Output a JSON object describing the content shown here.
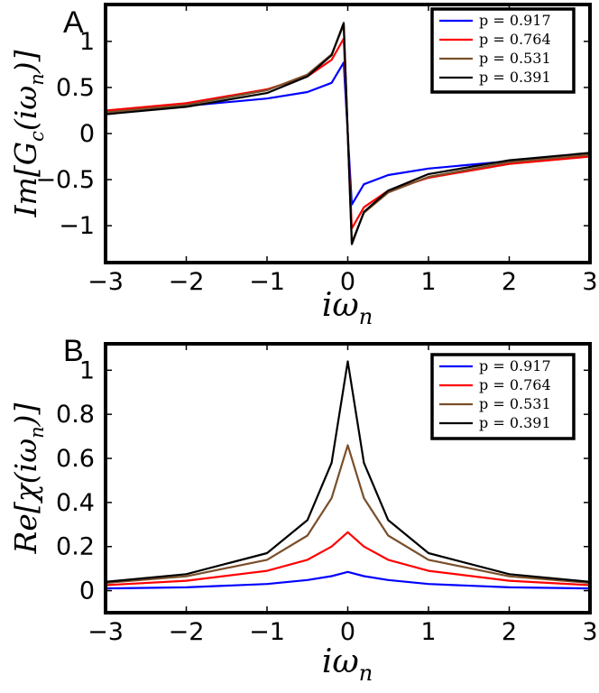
{
  "chart_data": [
    {
      "panel_label": "A",
      "type": "line",
      "xlabel": "iω",
      "xlabel_sub": "n",
      "ylabel": "Im[G_c(iω_n)]",
      "ylabel_parts": {
        "prefix": "Im[G",
        "sub1": "c",
        "mid": "(iω",
        "sub2": "n",
        "suffix": ")]"
      },
      "xlim": [
        -3,
        3
      ],
      "ylim": [
        -1.4,
        1.4
      ],
      "xticks": [
        -3,
        -2,
        -1,
        0,
        1,
        2,
        3
      ],
      "xtick_labels": [
        "−3",
        "−2",
        "−1",
        "0",
        "1",
        "2",
        "3"
      ],
      "yticks": [
        -1,
        -0.5,
        0,
        0.5,
        1
      ],
      "ytick_labels": [
        "−1",
        "−0.5",
        "0",
        "0.5",
        "1"
      ],
      "legend_position": "top-right",
      "series": [
        {
          "name": "p = 0.917",
          "color": "#0000ff",
          "x": [
            -3,
            -2,
            -1,
            -0.5,
            -0.2,
            -0.05,
            0.05,
            0.2,
            0.5,
            1,
            2,
            3
          ],
          "values": [
            0.24,
            0.3,
            0.38,
            0.45,
            0.55,
            0.77,
            -0.77,
            -0.55,
            -0.45,
            -0.38,
            -0.3,
            -0.24
          ]
        },
        {
          "name": "p = 0.764",
          "color": "#ff0000",
          "x": [
            -3,
            -2,
            -1,
            -0.5,
            -0.2,
            -0.05,
            0.05,
            0.2,
            0.5,
            1,
            2,
            3
          ],
          "values": [
            0.25,
            0.33,
            0.48,
            0.62,
            0.8,
            1.03,
            -1.03,
            -0.8,
            -0.62,
            -0.48,
            -0.33,
            -0.25
          ]
        },
        {
          "name": "p = 0.531",
          "color": "#7b4f2a",
          "x": [
            -3,
            -2,
            -1,
            -0.5,
            -0.2,
            -0.05,
            0.05,
            0.2,
            0.5,
            1,
            2,
            3
          ],
          "values": [
            0.23,
            0.31,
            0.47,
            0.64,
            0.86,
            1.18,
            -1.18,
            -0.86,
            -0.64,
            -0.47,
            -0.31,
            -0.23
          ]
        },
        {
          "name": "p = 0.391",
          "color": "#000000",
          "x": [
            -3,
            -2,
            -1,
            -0.5,
            -0.2,
            -0.05,
            0.05,
            0.2,
            0.5,
            1,
            2,
            3
          ],
          "values": [
            0.21,
            0.29,
            0.44,
            0.62,
            0.85,
            1.2,
            -1.2,
            -0.85,
            -0.62,
            -0.44,
            -0.29,
            -0.21
          ]
        }
      ]
    },
    {
      "panel_label": "B",
      "type": "line",
      "xlabel": "iω",
      "xlabel_sub": "n",
      "ylabel": "Re[χ(iω_n)]",
      "ylabel_parts": {
        "prefix": "Re[χ(iω",
        "sub1": "n",
        "mid": "",
        "sub2": "",
        "suffix": ")]"
      },
      "xlim": [
        -3,
        3
      ],
      "ylim": [
        -0.1,
        1.12
      ],
      "xticks": [
        -3,
        -2,
        -1,
        0,
        1,
        2,
        3
      ],
      "xtick_labels": [
        "−3",
        "−2",
        "−1",
        "0",
        "1",
        "2",
        "3"
      ],
      "yticks": [
        0,
        0.2,
        0.4,
        0.6,
        0.8,
        1
      ],
      "ytick_labels": [
        "0",
        "0.2",
        "0.4",
        "0.6",
        "0.8",
        "1"
      ],
      "legend_position": "top-right",
      "series": [
        {
          "name": "p = 0.917",
          "color": "#0000ff",
          "x": [
            -3,
            -2,
            -1,
            -0.5,
            -0.2,
            0,
            0.2,
            0.5,
            1,
            2,
            3
          ],
          "values": [
            0.01,
            0.015,
            0.03,
            0.048,
            0.066,
            0.085,
            0.066,
            0.048,
            0.03,
            0.015,
            0.01
          ]
        },
        {
          "name": "p = 0.764",
          "color": "#ff0000",
          "x": [
            -3,
            -2,
            -1,
            -0.5,
            -0.2,
            0,
            0.2,
            0.5,
            1,
            2,
            3
          ],
          "values": [
            0.025,
            0.045,
            0.09,
            0.14,
            0.2,
            0.265,
            0.2,
            0.14,
            0.09,
            0.045,
            0.025
          ]
        },
        {
          "name": "p = 0.531",
          "color": "#7b4f2a",
          "x": [
            -3,
            -2,
            -1,
            -0.5,
            -0.2,
            0,
            0.2,
            0.5,
            1,
            2,
            3
          ],
          "values": [
            0.035,
            0.065,
            0.14,
            0.25,
            0.42,
            0.66,
            0.42,
            0.25,
            0.14,
            0.065,
            0.035
          ]
        },
        {
          "name": "p = 0.391",
          "color": "#000000",
          "x": [
            -3,
            -2,
            -1,
            -0.5,
            -0.2,
            0,
            0.2,
            0.5,
            1,
            2,
            3
          ],
          "values": [
            0.04,
            0.075,
            0.17,
            0.32,
            0.58,
            1.04,
            0.58,
            0.32,
            0.17,
            0.075,
            0.04
          ]
        }
      ]
    }
  ]
}
